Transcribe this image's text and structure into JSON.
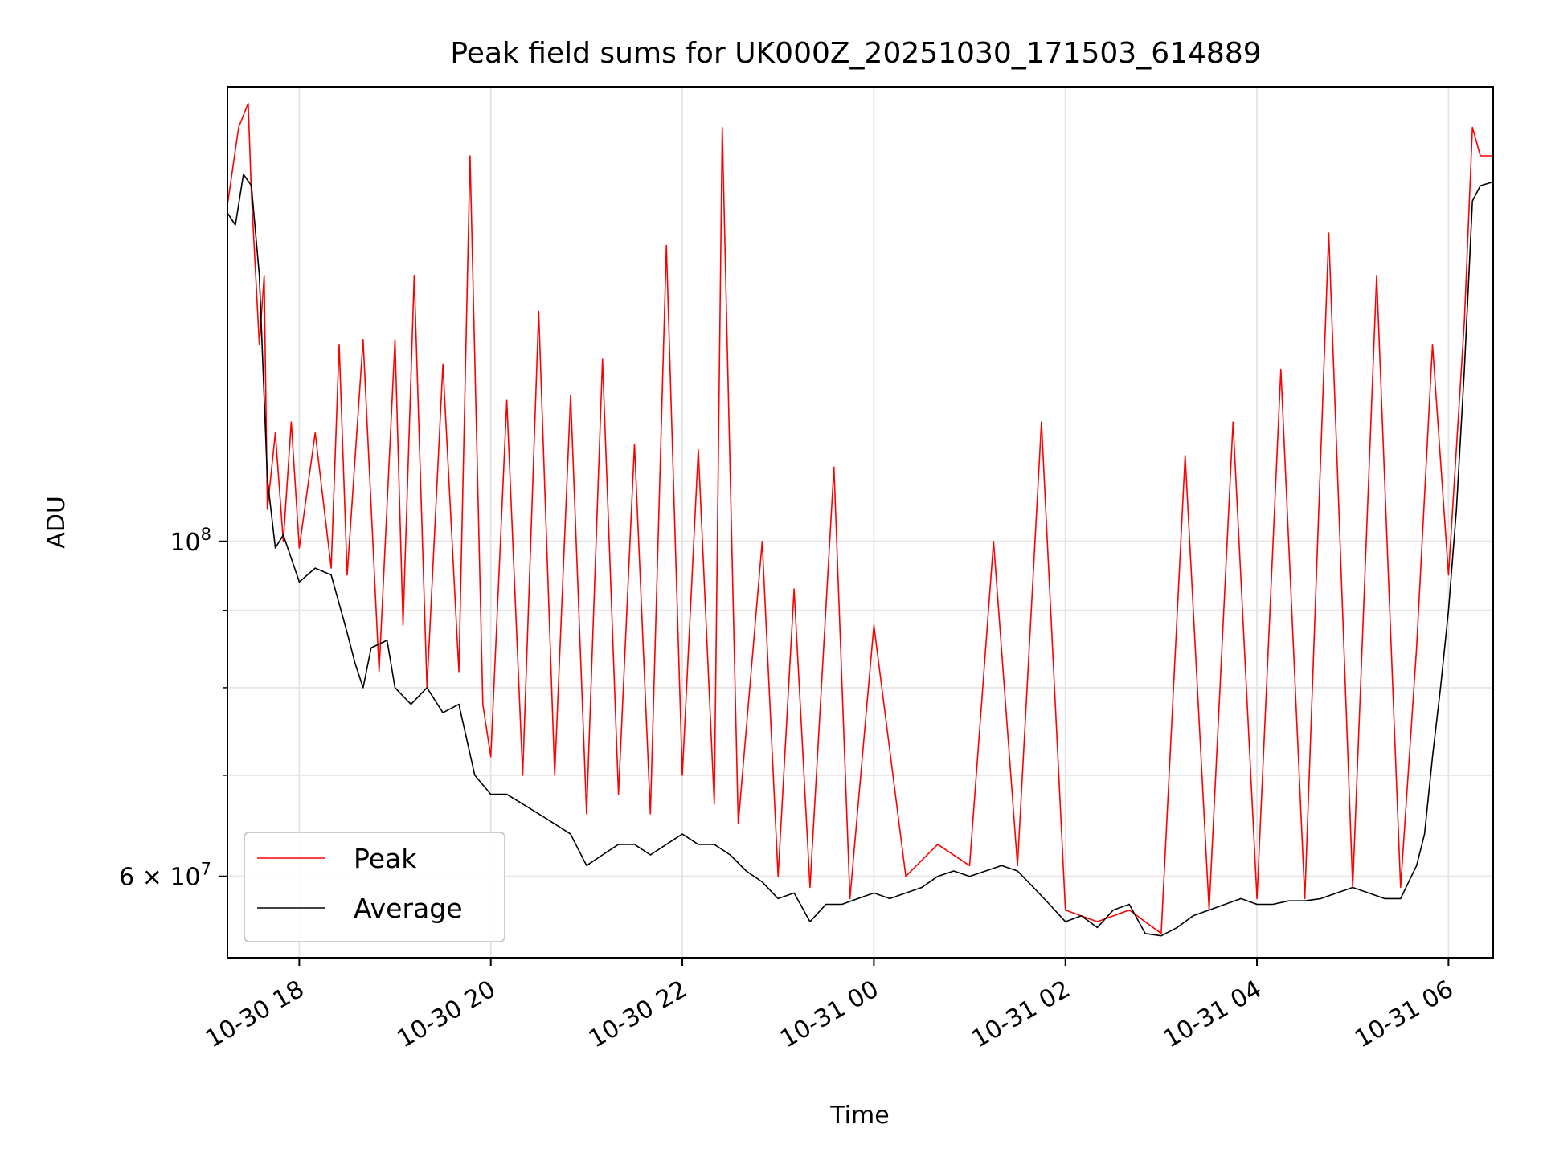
{
  "chart_data": {
    "type": "line",
    "title": "Peak field sums for UK000Z_20251030_171503_614889",
    "xlabel": "Time",
    "ylabel": "ADU",
    "y_scale": "log",
    "grid": true,
    "legend_position": "lower-left",
    "xlim": [
      "2025-10-30 17:15",
      "2025-10-31 06:28"
    ],
    "ylim": [
      53000000,
      200000000
    ],
    "x_ticks": [
      "2025-10-30 18:00",
      "2025-10-30 20:00",
      "2025-10-30 22:00",
      "2025-10-31 00:00",
      "2025-10-31 02:00",
      "2025-10-31 04:00",
      "2025-10-31 06:00"
    ],
    "x_tick_labels": [
      "10-30 18",
      "10-30 20",
      "10-30 22",
      "10-31 00",
      "10-31 02",
      "10-31 04",
      "10-31 06"
    ],
    "y_major_ticks": [
      {
        "value": 100000000,
        "label": "10^8"
      },
      {
        "value": 60000000,
        "label": "6×10^7"
      }
    ],
    "y_minor_ticks": [
      60000000,
      70000000,
      80000000,
      90000000
    ],
    "colors": {
      "peak": "#ff0000",
      "average": "#000000",
      "grid": "#e6e6e6"
    },
    "series": [
      {
        "name": "Peak",
        "color": "#ff0000",
        "points": [
          [
            "2025-10-30 17:15",
            167000000
          ],
          [
            "2025-10-30 17:22",
            188000000
          ],
          [
            "2025-10-30 17:28",
            195000000
          ],
          [
            "2025-10-30 17:30",
            170000000
          ],
          [
            "2025-10-30 17:35",
            135000000
          ],
          [
            "2025-10-30 17:38",
            150000000
          ],
          [
            "2025-10-30 17:40",
            105000000
          ],
          [
            "2025-10-30 17:45",
            118000000
          ],
          [
            "2025-10-30 17:50",
            100000000
          ],
          [
            "2025-10-30 17:55",
            120000000
          ],
          [
            "2025-10-30 18:00",
            99000000
          ],
          [
            "2025-10-30 18:10",
            118000000
          ],
          [
            "2025-10-30 18:20",
            96000000
          ],
          [
            "2025-10-30 18:25",
            135000000
          ],
          [
            "2025-10-30 18:30",
            95000000
          ],
          [
            "2025-10-30 18:40",
            136000000
          ],
          [
            "2025-10-30 18:50",
            82000000
          ],
          [
            "2025-10-30 19:00",
            136000000
          ],
          [
            "2025-10-30 19:05",
            88000000
          ],
          [
            "2025-10-30 19:12",
            150000000
          ],
          [
            "2025-10-30 19:20",
            80000000
          ],
          [
            "2025-10-30 19:30",
            131000000
          ],
          [
            "2025-10-30 19:40",
            82000000
          ],
          [
            "2025-10-30 19:47",
            180000000
          ],
          [
            "2025-10-30 19:55",
            78000000
          ],
          [
            "2025-10-30 20:00",
            72000000
          ],
          [
            "2025-10-30 20:10",
            124000000
          ],
          [
            "2025-10-30 20:20",
            70000000
          ],
          [
            "2025-10-30 20:30",
            142000000
          ],
          [
            "2025-10-30 20:40",
            70000000
          ],
          [
            "2025-10-30 20:50",
            125000000
          ],
          [
            "2025-10-30 21:00",
            66000000
          ],
          [
            "2025-10-30 21:10",
            132000000
          ],
          [
            "2025-10-30 21:20",
            68000000
          ],
          [
            "2025-10-30 21:30",
            116000000
          ],
          [
            "2025-10-30 21:40",
            66000000
          ],
          [
            "2025-10-30 21:50",
            157000000
          ],
          [
            "2025-10-30 22:00",
            70000000
          ],
          [
            "2025-10-30 22:10",
            115000000
          ],
          [
            "2025-10-30 22:20",
            67000000
          ],
          [
            "2025-10-30 22:25",
            188000000
          ],
          [
            "2025-10-30 22:35",
            65000000
          ],
          [
            "2025-10-30 22:50",
            100000000
          ],
          [
            "2025-10-30 23:00",
            60000000
          ],
          [
            "2025-10-30 23:10",
            93000000
          ],
          [
            "2025-10-30 23:20",
            59000000
          ],
          [
            "2025-10-30 23:35",
            112000000
          ],
          [
            "2025-10-30 23:45",
            58000000
          ],
          [
            "2025-10-31 00:00",
            88000000
          ],
          [
            "2025-10-31 00:20",
            60000000
          ],
          [
            "2025-10-31 00:40",
            63000000
          ],
          [
            "2025-10-31 01:00",
            61000000
          ],
          [
            "2025-10-31 01:15",
            100000000
          ],
          [
            "2025-10-31 01:30",
            61000000
          ],
          [
            "2025-10-31 01:45",
            120000000
          ],
          [
            "2025-10-31 02:00",
            57000000
          ],
          [
            "2025-10-31 02:20",
            56000000
          ],
          [
            "2025-10-31 02:40",
            57000000
          ],
          [
            "2025-10-31 03:00",
            55000000
          ],
          [
            "2025-10-31 03:15",
            114000000
          ],
          [
            "2025-10-31 03:30",
            57000000
          ],
          [
            "2025-10-31 03:45",
            120000000
          ],
          [
            "2025-10-31 04:00",
            58000000
          ],
          [
            "2025-10-31 04:15",
            130000000
          ],
          [
            "2025-10-31 04:30",
            58000000
          ],
          [
            "2025-10-31 04:45",
            160000000
          ],
          [
            "2025-10-31 05:00",
            59000000
          ],
          [
            "2025-10-31 05:15",
            150000000
          ],
          [
            "2025-10-31 05:30",
            59000000
          ],
          [
            "2025-10-31 05:40",
            85000000
          ],
          [
            "2025-10-31 05:50",
            135000000
          ],
          [
            "2025-10-31 06:00",
            95000000
          ],
          [
            "2025-10-31 06:10",
            140000000
          ],
          [
            "2025-10-31 06:15",
            188000000
          ],
          [
            "2025-10-31 06:20",
            180000000
          ],
          [
            "2025-10-31 06:28",
            180000000
          ]
        ]
      },
      {
        "name": "Average",
        "color": "#000000",
        "points": [
          [
            "2025-10-30 17:15",
            165000000
          ],
          [
            "2025-10-30 17:20",
            162000000
          ],
          [
            "2025-10-30 17:25",
            175000000
          ],
          [
            "2025-10-30 17:30",
            172000000
          ],
          [
            "2025-10-30 17:35",
            150000000
          ],
          [
            "2025-10-30 17:40",
            110000000
          ],
          [
            "2025-10-30 17:45",
            99000000
          ],
          [
            "2025-10-30 17:50",
            101000000
          ],
          [
            "2025-10-30 18:00",
            94000000
          ],
          [
            "2025-10-30 18:10",
            96000000
          ],
          [
            "2025-10-30 18:20",
            95000000
          ],
          [
            "2025-10-30 18:30",
            87000000
          ],
          [
            "2025-10-30 18:35",
            83000000
          ],
          [
            "2025-10-30 18:40",
            80000000
          ],
          [
            "2025-10-30 18:45",
            85000000
          ],
          [
            "2025-10-30 18:55",
            86000000
          ],
          [
            "2025-10-30 19:00",
            80000000
          ],
          [
            "2025-10-30 19:10",
            78000000
          ],
          [
            "2025-10-30 19:20",
            80000000
          ],
          [
            "2025-10-30 19:30",
            77000000
          ],
          [
            "2025-10-30 19:40",
            78000000
          ],
          [
            "2025-10-30 19:50",
            70000000
          ],
          [
            "2025-10-30 20:00",
            68000000
          ],
          [
            "2025-10-30 20:10",
            68000000
          ],
          [
            "2025-10-30 20:20",
            67000000
          ],
          [
            "2025-10-30 20:30",
            66000000
          ],
          [
            "2025-10-30 20:40",
            65000000
          ],
          [
            "2025-10-30 20:50",
            64000000
          ],
          [
            "2025-10-30 21:00",
            61000000
          ],
          [
            "2025-10-30 21:10",
            62000000
          ],
          [
            "2025-10-30 21:20",
            63000000
          ],
          [
            "2025-10-30 21:30",
            63000000
          ],
          [
            "2025-10-30 21:40",
            62000000
          ],
          [
            "2025-10-30 21:50",
            63000000
          ],
          [
            "2025-10-30 22:00",
            64000000
          ],
          [
            "2025-10-30 22:10",
            63000000
          ],
          [
            "2025-10-30 22:20",
            63000000
          ],
          [
            "2025-10-30 22:30",
            62000000
          ],
          [
            "2025-10-30 22:40",
            60500000
          ],
          [
            "2025-10-30 22:50",
            59500000
          ],
          [
            "2025-10-30 23:00",
            58000000
          ],
          [
            "2025-10-30 23:10",
            58500000
          ],
          [
            "2025-10-30 23:20",
            56000000
          ],
          [
            "2025-10-30 23:30",
            57500000
          ],
          [
            "2025-10-30 23:40",
            57500000
          ],
          [
            "2025-10-30 23:50",
            58000000
          ],
          [
            "2025-10-31 00:00",
            58500000
          ],
          [
            "2025-10-31 00:10",
            58000000
          ],
          [
            "2025-10-31 00:20",
            58500000
          ],
          [
            "2025-10-31 00:30",
            59000000
          ],
          [
            "2025-10-31 00:40",
            60000000
          ],
          [
            "2025-10-31 00:50",
            60500000
          ],
          [
            "2025-10-31 01:00",
            60000000
          ],
          [
            "2025-10-31 01:10",
            60500000
          ],
          [
            "2025-10-31 01:20",
            61000000
          ],
          [
            "2025-10-31 01:30",
            60500000
          ],
          [
            "2025-10-31 01:40",
            59000000
          ],
          [
            "2025-10-31 01:50",
            57500000
          ],
          [
            "2025-10-31 02:00",
            56000000
          ],
          [
            "2025-10-31 02:10",
            56500000
          ],
          [
            "2025-10-31 02:20",
            55500000
          ],
          [
            "2025-10-31 02:30",
            57000000
          ],
          [
            "2025-10-31 02:40",
            57500000
          ],
          [
            "2025-10-31 02:50",
            55000000
          ],
          [
            "2025-10-31 03:00",
            54800000
          ],
          [
            "2025-10-31 03:10",
            55500000
          ],
          [
            "2025-10-31 03:20",
            56500000
          ],
          [
            "2025-10-31 03:30",
            57000000
          ],
          [
            "2025-10-31 03:40",
            57500000
          ],
          [
            "2025-10-31 03:50",
            58000000
          ],
          [
            "2025-10-31 04:00",
            57500000
          ],
          [
            "2025-10-31 04:10",
            57500000
          ],
          [
            "2025-10-31 04:20",
            57800000
          ],
          [
            "2025-10-31 04:30",
            57800000
          ],
          [
            "2025-10-31 04:40",
            58000000
          ],
          [
            "2025-10-31 04:50",
            58500000
          ],
          [
            "2025-10-31 05:00",
            59000000
          ],
          [
            "2025-10-31 05:10",
            58500000
          ],
          [
            "2025-10-31 05:20",
            58000000
          ],
          [
            "2025-10-31 05:30",
            58000000
          ],
          [
            "2025-10-31 05:40",
            61000000
          ],
          [
            "2025-10-31 05:45",
            64000000
          ],
          [
            "2025-10-31 05:50",
            72000000
          ],
          [
            "2025-10-31 05:55",
            80000000
          ],
          [
            "2025-10-31 06:00",
            90000000
          ],
          [
            "2025-10-31 06:05",
            105000000
          ],
          [
            "2025-10-31 06:10",
            130000000
          ],
          [
            "2025-10-31 06:15",
            168000000
          ],
          [
            "2025-10-31 06:20",
            172000000
          ],
          [
            "2025-10-31 06:28",
            173000000
          ]
        ]
      }
    ]
  }
}
